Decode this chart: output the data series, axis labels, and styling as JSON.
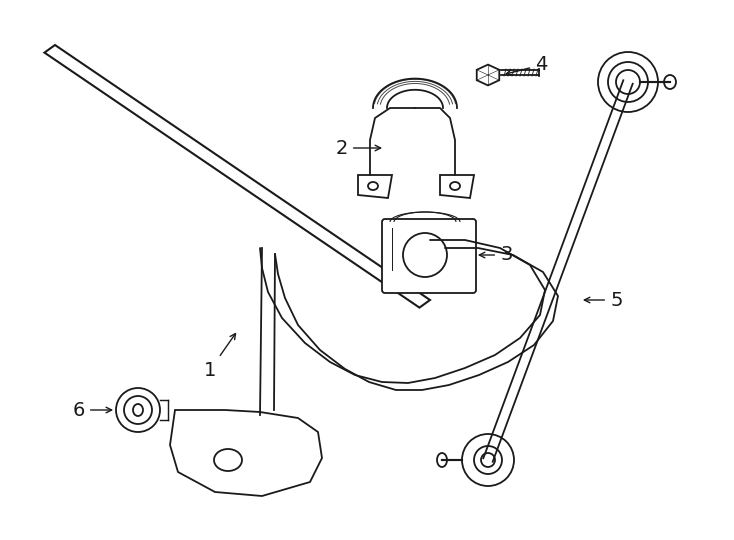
{
  "background_color": "#ffffff",
  "line_color": "#1a1a1a",
  "lw": 1.3,
  "figsize": [
    7.34,
    5.4
  ],
  "dpi": 100,
  "xlim": [
    0,
    734
  ],
  "ylim": [
    0,
    540
  ]
}
